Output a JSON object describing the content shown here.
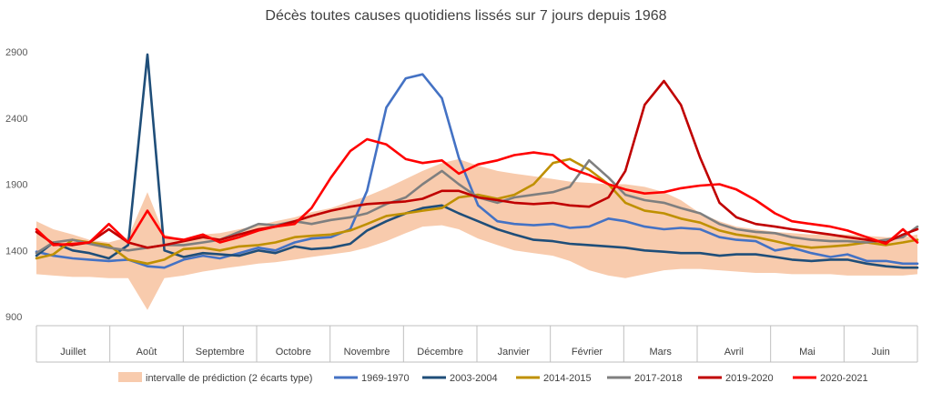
{
  "chart_data": {
    "type": "line",
    "title": "Décès toutes causes quotidiens lissés sur 7 jours depuis 1968",
    "xlabel": "",
    "ylabel": "",
    "ylim": [
      900,
      2900
    ],
    "yticks": [
      900,
      1400,
      1900,
      2400,
      2900
    ],
    "grid": false,
    "legend_position": "bottom",
    "months": [
      "Juillet",
      "Août",
      "Septembre",
      "Octobre",
      "Novembre",
      "Décembre",
      "Janvier",
      "Février",
      "Mars",
      "Avril",
      "Mai",
      "Juin"
    ],
    "x": [
      0,
      7,
      15,
      22,
      30,
      38,
      46,
      53,
      61,
      69,
      76,
      84,
      92,
      99,
      107,
      114,
      122,
      130,
      137,
      145,
      153,
      160,
      168,
      175,
      183,
      191,
      198,
      206,
      214,
      221,
      229,
      237,
      244,
      252,
      260,
      267,
      275,
      283,
      290,
      298,
      306,
      313,
      321,
      329,
      336,
      344,
      352,
      359,
      365
    ],
    "band": {
      "name": "intervalle de prédiction (2 écarts type)",
      "color": "#f8cbad",
      "upper": [
        1620,
        1560,
        1520,
        1480,
        1460,
        1500,
        1840,
        1520,
        1480,
        1520,
        1530,
        1560,
        1590,
        1620,
        1650,
        1690,
        1720,
        1770,
        1810,
        1870,
        1940,
        2000,
        2060,
        2090,
        2040,
        2000,
        1980,
        1960,
        1940,
        1920,
        1910,
        1900,
        1900,
        1880,
        1840,
        1780,
        1680,
        1620,
        1580,
        1560,
        1540,
        1530,
        1520,
        1520,
        1520,
        1510,
        1500,
        1500,
        1520
      ],
      "lower": [
        1220,
        1210,
        1200,
        1200,
        1190,
        1190,
        950,
        1190,
        1210,
        1240,
        1260,
        1280,
        1300,
        1310,
        1330,
        1350,
        1370,
        1390,
        1420,
        1470,
        1530,
        1580,
        1590,
        1560,
        1490,
        1440,
        1400,
        1380,
        1360,
        1320,
        1250,
        1210,
        1190,
        1220,
        1250,
        1260,
        1260,
        1250,
        1240,
        1230,
        1230,
        1220,
        1220,
        1220,
        1210,
        1210,
        1210,
        1210,
        1220
      ]
    },
    "series": [
      {
        "name": "1969-1970",
        "color": "#4472c4",
        "values": [
          1390,
          1360,
          1340,
          1330,
          1320,
          1330,
          1280,
          1270,
          1330,
          1360,
          1340,
          1380,
          1420,
          1400,
          1460,
          1490,
          1500,
          1560,
          1850,
          2480,
          2700,
          2730,
          2550,
          2100,
          1740,
          1620,
          1600,
          1590,
          1600,
          1570,
          1580,
          1640,
          1620,
          1580,
          1560,
          1570,
          1560,
          1500,
          1480,
          1470,
          1400,
          1420,
          1380,
          1350,
          1370,
          1320,
          1320,
          1300,
          1300
        ]
      },
      {
        "name": "2003-2004",
        "color": "#1f4e79",
        "values": [
          1360,
          1460,
          1400,
          1380,
          1340,
          1440,
          2880,
          1400,
          1350,
          1380,
          1370,
          1360,
          1400,
          1380,
          1430,
          1410,
          1420,
          1450,
          1550,
          1620,
          1680,
          1720,
          1740,
          1680,
          1620,
          1560,
          1520,
          1480,
          1470,
          1450,
          1440,
          1430,
          1420,
          1400,
          1390,
          1380,
          1380,
          1360,
          1370,
          1370,
          1350,
          1330,
          1320,
          1330,
          1330,
          1300,
          1280,
          1270,
          1270
        ]
      },
      {
        "name": "2014-2015",
        "color": "#bf9000",
        "values": [
          1340,
          1370,
          1480,
          1460,
          1440,
          1330,
          1300,
          1330,
          1410,
          1420,
          1400,
          1430,
          1440,
          1460,
          1500,
          1510,
          1520,
          1550,
          1600,
          1660,
          1680,
          1700,
          1720,
          1800,
          1820,
          1790,
          1820,
          1900,
          2060,
          2090,
          2010,
          1900,
          1760,
          1700,
          1680,
          1640,
          1610,
          1550,
          1520,
          1500,
          1470,
          1440,
          1420,
          1430,
          1440,
          1460,
          1440,
          1460,
          1480
        ]
      },
      {
        "name": "2017-2018",
        "color": "#7f7f7f",
        "values": [
          1380,
          1460,
          1480,
          1450,
          1420,
          1400,
          1420,
          1440,
          1440,
          1460,
          1480,
          1540,
          1600,
          1590,
          1620,
          1600,
          1630,
          1650,
          1680,
          1750,
          1800,
          1900,
          2000,
          1900,
          1800,
          1760,
          1800,
          1820,
          1840,
          1880,
          2080,
          1950,
          1820,
          1780,
          1760,
          1720,
          1680,
          1600,
          1560,
          1540,
          1530,
          1500,
          1480,
          1470,
          1470,
          1460,
          1480,
          1500,
          1580
        ]
      },
      {
        "name": "2019-2020",
        "color": "#c00000",
        "values": [
          1540,
          1450,
          1440,
          1460,
          1560,
          1460,
          1420,
          1440,
          1470,
          1500,
          1480,
          1520,
          1560,
          1580,
          1620,
          1660,
          1700,
          1730,
          1750,
          1760,
          1770,
          1790,
          1850,
          1850,
          1800,
          1780,
          1760,
          1750,
          1760,
          1740,
          1730,
          1800,
          2000,
          2500,
          2680,
          2500,
          2100,
          1760,
          1650,
          1600,
          1580,
          1560,
          1540,
          1520,
          1500,
          1480,
          1460,
          1520,
          1560
        ]
      },
      {
        "name": "2020-2021",
        "color": "#ff0000",
        "values": [
          1560,
          1440,
          1450,
          1460,
          1600,
          1460,
          1700,
          1500,
          1480,
          1520,
          1460,
          1500,
          1550,
          1580,
          1600,
          1720,
          1950,
          2150,
          2240,
          2200,
          2090,
          2060,
          2080,
          1980,
          2050,
          2080,
          2120,
          2140,
          2120,
          2020,
          1970,
          1900,
          1860,
          1830,
          1840,
          1870,
          1890,
          1900,
          1860,
          1780,
          1680,
          1620,
          1600,
          1580,
          1550,
          1500,
          1450,
          1560,
          1460
        ]
      }
    ]
  }
}
